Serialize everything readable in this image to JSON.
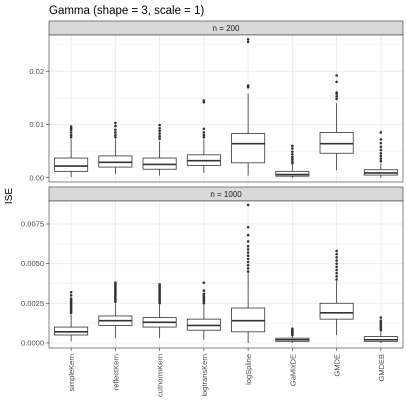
{
  "chart_data": {
    "type": "boxplot",
    "title": "Gamma (shape = 3, scale = 1)",
    "ylabel": "ISE",
    "xlabel": "",
    "grid": true,
    "categories": [
      "simpleKern",
      "reflectKern",
      "cutnormKern",
      "logtransKern",
      "logSpline",
      "GaMixDE",
      "GMDE",
      "GMDEB"
    ],
    "panels": [
      {
        "label": "n = 200",
        "ylim": [
          -0.0008,
          0.0268
        ],
        "yticks": [
          0.0,
          0.01,
          0.02
        ],
        "ytick_labels": [
          "0.00",
          "0.01",
          "0.02"
        ],
        "boxes": [
          {
            "min": 0.0001,
            "q1": 0.0012,
            "median": 0.0022,
            "q3": 0.0037,
            "max": 0.0072,
            "outliers": [
              0.0076,
              0.008,
              0.0085,
              0.009,
              0.0093,
              0.0096
            ]
          },
          {
            "min": 0.0007,
            "q1": 0.002,
            "median": 0.0029,
            "q3": 0.0041,
            "max": 0.0072,
            "outliers": [
              0.0076,
              0.008,
              0.0085,
              0.009,
              0.0097,
              0.0103
            ]
          },
          {
            "min": 0.0004,
            "q1": 0.0016,
            "median": 0.0025,
            "q3": 0.0037,
            "max": 0.0068,
            "outliers": [
              0.0073,
              0.0078,
              0.0083,
              0.0088,
              0.0093,
              0.0099
            ]
          },
          {
            "min": 0.0009,
            "q1": 0.0023,
            "median": 0.0032,
            "q3": 0.0043,
            "max": 0.0072,
            "outliers": [
              0.0076,
              0.008,
              0.0085,
              0.0092,
              0.0142,
              0.0145
            ]
          },
          {
            "min": 0.0004,
            "q1": 0.0028,
            "median": 0.0064,
            "q3": 0.0083,
            "max": 0.0158,
            "outliers": [
              0.017,
              0.0173,
              0.0255,
              0.026
            ]
          },
          {
            "min": 0.0,
            "q1": 0.0003,
            "median": 0.0006,
            "q3": 0.0012,
            "max": 0.0024,
            "outliers": [
              0.0027,
              0.0031,
              0.0035,
              0.0039,
              0.0044,
              0.0049,
              0.0055,
              0.006
            ]
          },
          {
            "min": 0.0014,
            "q1": 0.0046,
            "median": 0.0064,
            "q3": 0.0085,
            "max": 0.014,
            "outliers": [
              0.0148,
              0.0153,
              0.0158,
              0.016,
              0.018,
              0.0192
            ]
          },
          {
            "min": 0.0,
            "q1": 0.0005,
            "median": 0.0009,
            "q3": 0.0015,
            "max": 0.0027,
            "outliers": [
              0.0031,
              0.0036,
              0.0041,
              0.0046,
              0.0052,
              0.0058,
              0.0065,
              0.0072,
              0.0085
            ]
          }
        ]
      },
      {
        "label": "n = 1000",
        "ylim": [
          -0.00032,
          0.00895
        ],
        "yticks": [
          0.0,
          0.0025,
          0.005,
          0.0075
        ],
        "ytick_labels": [
          "0.0000",
          "0.0025",
          "0.0050",
          "0.0075"
        ],
        "boxes": [
          {
            "min": 0.0001,
            "q1": 0.0005,
            "median": 0.0007,
            "q3": 0.001,
            "max": 0.0018,
            "outliers": [
              0.0019,
              0.002,
              0.0021,
              0.0022,
              0.0023,
              0.0024,
              0.0025,
              0.0026,
              0.0027,
              0.0028,
              0.003,
              0.0032
            ]
          },
          {
            "min": 0.0003,
            "q1": 0.0011,
            "median": 0.0014,
            "q3": 0.0017,
            "max": 0.0025,
            "outliers": [
              0.0026,
              0.0027,
              0.0028,
              0.0029,
              0.003,
              0.0031,
              0.0032,
              0.0033,
              0.0034,
              0.0035,
              0.0036,
              0.0037,
              0.0038
            ]
          },
          {
            "min": 0.0003,
            "q1": 0.001,
            "median": 0.0013,
            "q3": 0.0016,
            "max": 0.0024,
            "outliers": [
              0.0025,
              0.0026,
              0.0027,
              0.0028,
              0.0029,
              0.003,
              0.0031,
              0.0032,
              0.0033,
              0.0034,
              0.0035,
              0.0036,
              0.0037
            ]
          },
          {
            "min": 0.0002,
            "q1": 0.0008,
            "median": 0.0011,
            "q3": 0.0015,
            "max": 0.0024,
            "outliers": [
              0.0025,
              0.0026,
              0.0027,
              0.0028,
              0.0029,
              0.003,
              0.0031,
              0.0033,
              0.0038
            ]
          },
          {
            "min": 0.0,
            "q1": 0.0007,
            "median": 0.0014,
            "q3": 0.0022,
            "max": 0.0044,
            "outliers": [
              0.0045,
              0.0047,
              0.0049,
              0.0051,
              0.0053,
              0.0055,
              0.0057,
              0.0059,
              0.0061,
              0.0064,
              0.0068,
              0.0073,
              0.0087
            ]
          },
          {
            "min": 0.0,
            "q1": 0.0001,
            "median": 0.0002,
            "q3": 0.0003,
            "max": 0.0005,
            "outliers": [
              0.0005,
              0.0006,
              0.0006,
              0.0007,
              0.0007,
              0.0008,
              0.0008,
              0.0009
            ]
          },
          {
            "min": 0.0005,
            "q1": 0.0015,
            "median": 0.0019,
            "q3": 0.0025,
            "max": 0.0039,
            "outliers": [
              0.004,
              0.0042,
              0.0044,
              0.0046,
              0.0048,
              0.005,
              0.0052,
              0.0054,
              0.0056,
              0.0058
            ]
          },
          {
            "min": 0.0,
            "q1": 0.0001,
            "median": 0.0002,
            "q3": 0.0004,
            "max": 0.0007,
            "outliers": [
              0.0008,
              0.0009,
              0.001,
              0.0011,
              0.0012,
              0.0013,
              0.0014,
              0.0016
            ]
          }
        ]
      }
    ]
  }
}
